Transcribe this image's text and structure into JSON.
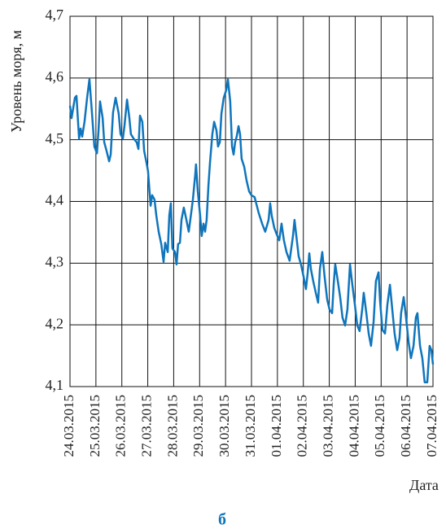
{
  "chart_data": {
    "type": "line",
    "ylabel": "Уровень моря, м",
    "xlabel": "Дата",
    "caption": "б",
    "xlim": [
      0,
      14
    ],
    "xticks": [
      {
        "value": 0,
        "label": "24.03.2015"
      },
      {
        "value": 1,
        "label": "25.03.2015"
      },
      {
        "value": 2,
        "label": "26.03.2015"
      },
      {
        "value": 3,
        "label": "27.03.2015"
      },
      {
        "value": 4,
        "label": "28.03.2015"
      },
      {
        "value": 5,
        "label": "29.03.2015"
      },
      {
        "value": 6,
        "label": "30.03.2015"
      },
      {
        "value": 7,
        "label": "31.03.2015"
      },
      {
        "value": 8,
        "label": "01.04.2015"
      },
      {
        "value": 9,
        "label": "02.04.2015"
      },
      {
        "value": 10,
        "label": "03.04.2015"
      },
      {
        "value": 11,
        "label": "04.04.2015"
      },
      {
        "value": 12,
        "label": "05.04.2015"
      },
      {
        "value": 13,
        "label": "06.04.2015"
      },
      {
        "value": 14,
        "label": "07.04.2015"
      }
    ],
    "ylim": [
      4.1,
      4.7
    ],
    "yticks": [
      {
        "value": 4.1,
        "label": "4,1"
      },
      {
        "value": 4.2,
        "label": "4,2"
      },
      {
        "value": 4.3,
        "label": "4,3"
      },
      {
        "value": 4.4,
        "label": "4,4"
      },
      {
        "value": 4.5,
        "label": "4,5"
      },
      {
        "value": 4.6,
        "label": "4,6"
      },
      {
        "value": 4.7,
        "label": "4,7"
      }
    ],
    "grid": true,
    "x": [
      0,
      0.06,
      0.19,
      0.25,
      0.35,
      0.41,
      0.47,
      0.56,
      0.66,
      0.75,
      0.85,
      0.94,
      1.04,
      1.1,
      1.16,
      1.26,
      1.32,
      1.41,
      1.51,
      1.57,
      1.66,
      1.76,
      1.88,
      1.95,
      2.04,
      2.1,
      2.2,
      2.29,
      2.35,
      2.45,
      2.57,
      2.64,
      2.7,
      2.79,
      2.86,
      2.95,
      3.01,
      3.11,
      3.17,
      3.26,
      3.33,
      3.42,
      3.52,
      3.61,
      3.67,
      3.77,
      3.83,
      3.89,
      3.95,
      4.05,
      4.11,
      4.17,
      4.24,
      4.3,
      4.39,
      4.49,
      4.58,
      4.68,
      4.74,
      4.83,
      4.86,
      4.93,
      5.02,
      5.08,
      5.15,
      5.21,
      5.27,
      5.34,
      5.4,
      5.49,
      5.56,
      5.65,
      5.71,
      5.78,
      5.84,
      5.93,
      6.03,
      6.09,
      6.18,
      6.25,
      6.31,
      6.37,
      6.43,
      6.5,
      6.56,
      6.62,
      6.72,
      6.81,
      6.91,
      7.0,
      7.12,
      7.28,
      7.41,
      7.53,
      7.66,
      7.72,
      7.78,
      7.88,
      7.97,
      8.07,
      8.16,
      8.25,
      8.35,
      8.47,
      8.6,
      8.66,
      8.73,
      8.82,
      8.91,
      9.01,
      9.1,
      9.17,
      9.23,
      9.29,
      9.38,
      9.48,
      9.57,
      9.64,
      9.73,
      9.82,
      9.92,
      10.01,
      10.11,
      10.17,
      10.23,
      10.33,
      10.42,
      10.51,
      10.61,
      10.7,
      10.8,
      10.89,
      10.99,
      11.08,
      11.17,
      11.27,
      11.33,
      11.43,
      11.52,
      11.61,
      11.71,
      11.8,
      11.9,
      11.96,
      12.05,
      12.15,
      12.24,
      12.34,
      12.43,
      12.52,
      12.62,
      12.71,
      12.77,
      12.87,
      12.96,
      13.06,
      13.15,
      13.25,
      13.34,
      13.4,
      13.5,
      13.59,
      13.68,
      13.78,
      13.87,
      13.94,
      14.0
    ],
    "series": [
      {
        "color": "#0f75bc",
        "values": [
          4.555,
          4.535,
          4.568,
          4.571,
          4.502,
          4.518,
          4.505,
          4.529,
          4.568,
          4.598,
          4.542,
          4.489,
          4.478,
          4.515,
          4.562,
          4.535,
          4.496,
          4.482,
          4.465,
          4.476,
          4.544,
          4.568,
          4.542,
          4.509,
          4.502,
          4.522,
          4.565,
          4.535,
          4.509,
          4.502,
          4.496,
          4.485,
          4.539,
          4.529,
          4.482,
          4.463,
          4.449,
          4.393,
          4.41,
          4.403,
          4.377,
          4.351,
          4.331,
          4.302,
          4.333,
          4.318,
          4.377,
          4.397,
          4.324,
          4.318,
          4.298,
          4.331,
          4.333,
          4.37,
          4.39,
          4.37,
          4.351,
          4.383,
          4.403,
          4.443,
          4.46,
          4.416,
          4.377,
          4.344,
          4.364,
          4.351,
          4.37,
          4.426,
          4.463,
          4.509,
          4.529,
          4.515,
          4.489,
          4.496,
          4.542,
          4.568,
          4.581,
          4.598,
          4.562,
          4.489,
          4.476,
          4.496,
          4.505,
          4.522,
          4.509,
          4.469,
          4.456,
          4.434,
          4.416,
          4.41,
          4.407,
          4.381,
          4.364,
          4.351,
          4.37,
          4.397,
          4.377,
          4.357,
          4.347,
          4.337,
          4.364,
          4.337,
          4.318,
          4.304,
          4.344,
          4.37,
          4.344,
          4.311,
          4.298,
          4.278,
          4.258,
          4.285,
          4.316,
          4.291,
          4.271,
          4.252,
          4.236,
          4.291,
          4.318,
          4.278,
          4.241,
          4.225,
          4.219,
          4.265,
          4.298,
          4.271,
          4.245,
          4.212,
          4.199,
          4.225,
          4.298,
          4.265,
          4.232,
          4.199,
          4.19,
          4.225,
          4.252,
          4.219,
          4.186,
          4.166,
          4.205,
          4.271,
          4.285,
          4.238,
          4.192,
          4.186,
          4.232,
          4.265,
          4.225,
          4.186,
          4.159,
          4.179,
          4.219,
          4.245,
          4.212,
          4.172,
          4.146,
          4.166,
          4.212,
          4.219,
          4.166,
          4.146,
          4.107,
          4.107,
          4.166,
          4.159,
          4.136
        ]
      }
    ]
  }
}
